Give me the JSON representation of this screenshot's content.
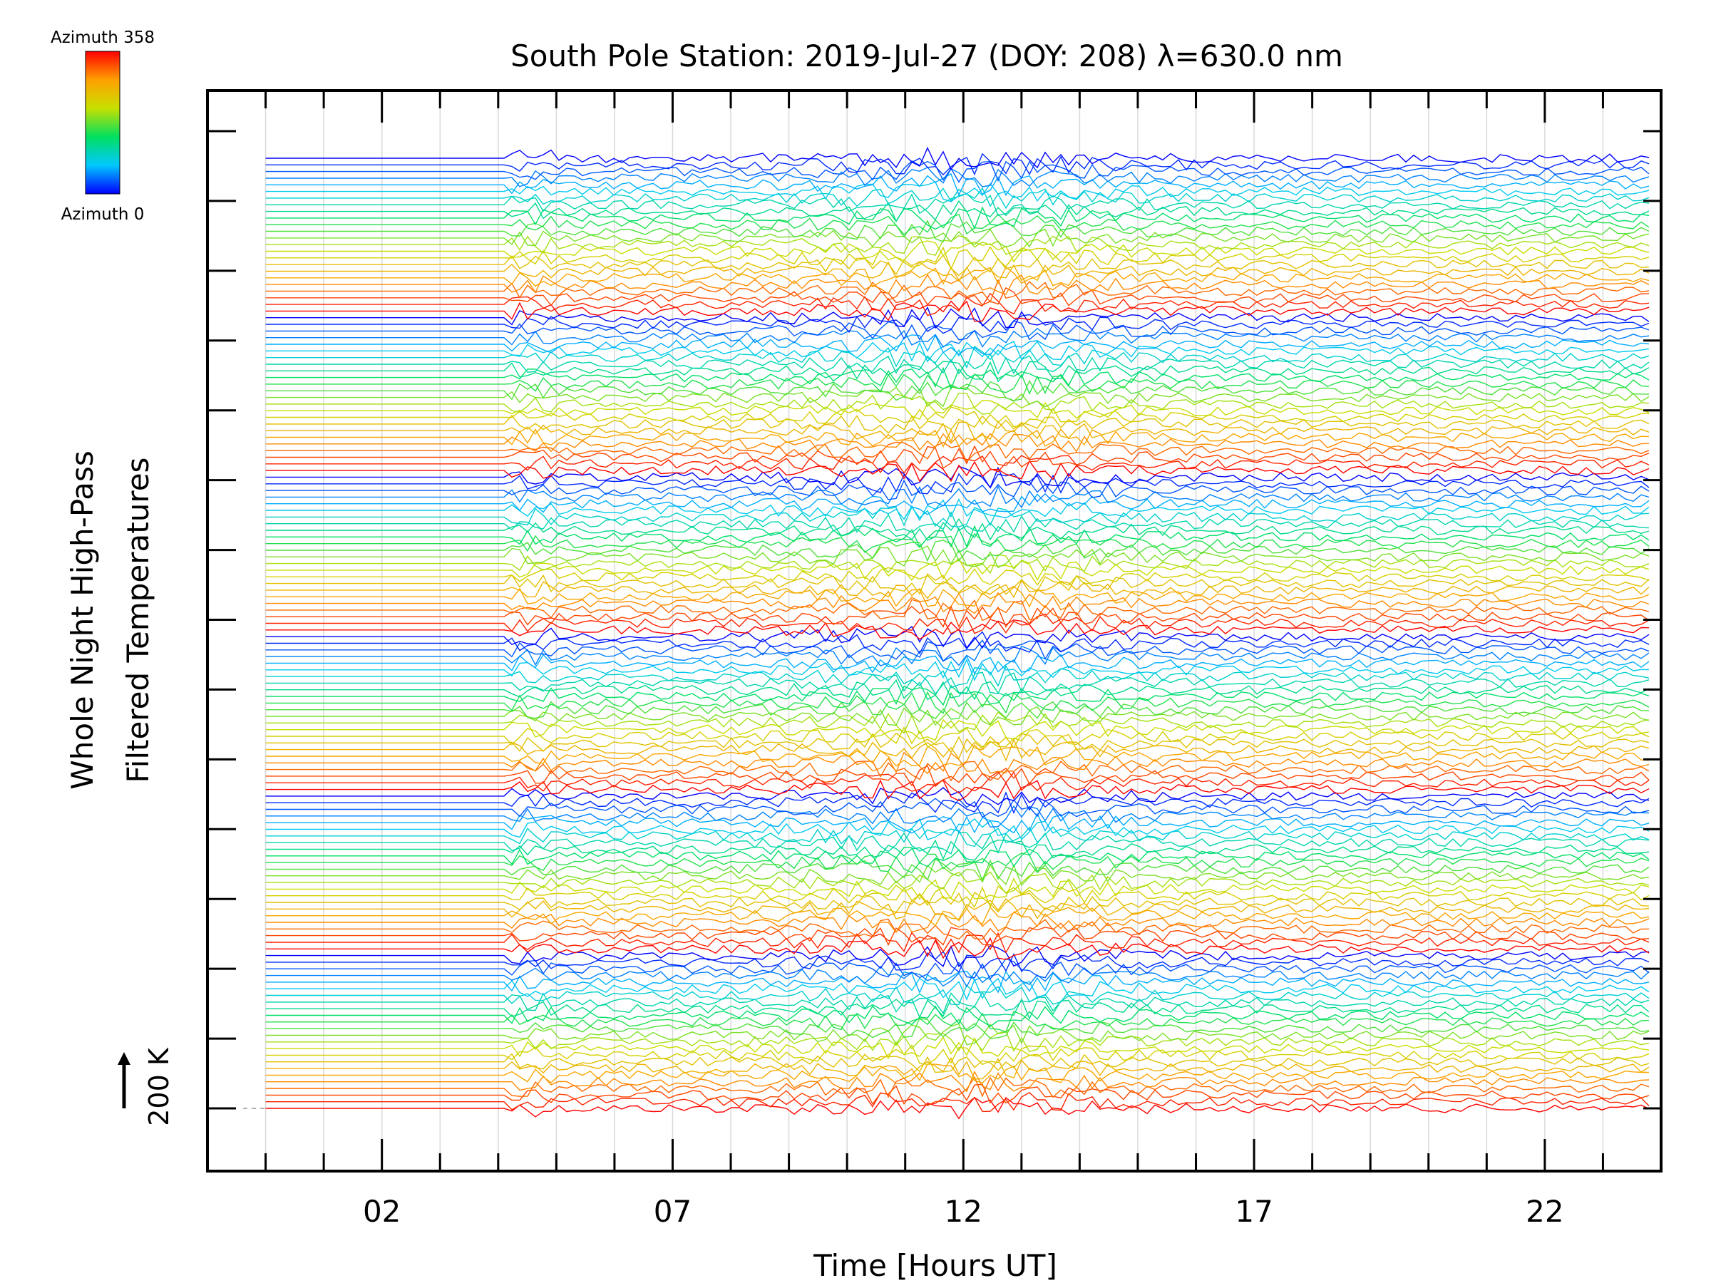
{
  "chart_data": {
    "type": "line",
    "title": "South Pole Station: 2019-Jul-27 (DOY: 208) λ=630.0 nm",
    "xlabel": "Time [Hours UT]",
    "ylabel_lines": [
      "Whole Night High-Pass",
      "Filtered Temperatures"
    ],
    "x_range_hours": [
      -1.0,
      24.0
    ],
    "x_tick_labels": [
      {
        "hour": 2,
        "label": "02"
      },
      {
        "hour": 7,
        "label": "07"
      },
      {
        "hour": 12,
        "label": "12"
      },
      {
        "hour": 17,
        "label": "17"
      },
      {
        "hour": 22,
        "label": "22"
      }
    ],
    "x_minor_ticks_hours": [
      0,
      1,
      3,
      4,
      5,
      6,
      8,
      9,
      10,
      11,
      13,
      14,
      15,
      16,
      18,
      19,
      20,
      21,
      23
    ],
    "grid": true,
    "y_scale_label": "200 K",
    "y_major_tick_count": 15,
    "colorbar": {
      "top_label": "Azimuth 358",
      "bottom_label": "Azimuth 0",
      "azimuth_min": 0,
      "azimuth_max": 358
    },
    "series_description": {
      "count": 144,
      "groups": 6,
      "per_group": 24,
      "data_start_hour": 0.0,
      "gap_end_hour": 4.1,
      "data_end_hour": 23.8,
      "stable_gap_note": "straight lines from 00 to ~04 UT then noisy high-pass filtered traces"
    }
  },
  "colors": {
    "background": "#ffffff",
    "axis": "#000000",
    "grid": "#d9d9d9"
  }
}
